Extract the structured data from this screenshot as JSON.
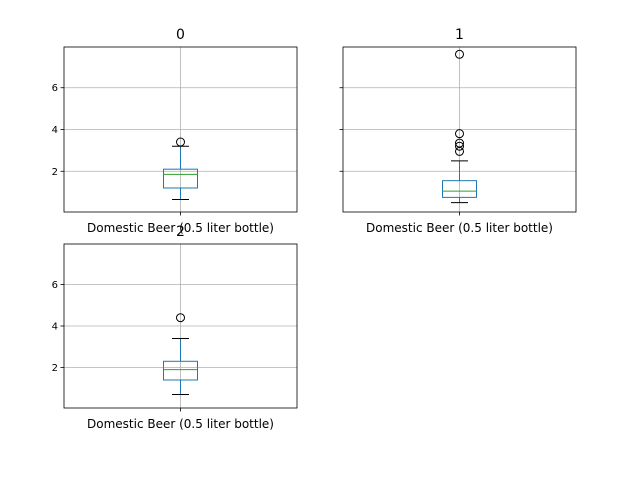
{
  "chart_data": [
    {
      "type": "boxplot",
      "title": "0",
      "category": "Domestic Beer (0.5 liter bottle)",
      "ylim": [
        0.05,
        7.95
      ],
      "yticks": [
        2,
        4,
        6
      ],
      "grid": true,
      "box": {
        "whisker_low": 0.65,
        "q1": 1.2,
        "median": 1.85,
        "q3": 2.1,
        "whisker_high": 3.2
      },
      "outliers": [
        3.4
      ]
    },
    {
      "type": "boxplot",
      "title": "1",
      "category": "Domestic Beer (0.5 liter bottle)",
      "ylim": [
        0.05,
        7.95
      ],
      "yticks": [
        2,
        4,
        6
      ],
      "grid": true,
      "box": {
        "whisker_low": 0.5,
        "q1": 0.75,
        "median": 1.05,
        "q3": 1.55,
        "whisker_high": 2.5
      },
      "outliers": [
        2.95,
        3.2,
        3.35,
        3.8,
        7.6
      ]
    },
    {
      "type": "boxplot",
      "title": "2",
      "category": "Domestic Beer (0.5 liter bottle)",
      "ylim": [
        0.05,
        7.95
      ],
      "yticks": [
        2,
        4,
        6
      ],
      "grid": true,
      "box": {
        "whisker_low": 0.7,
        "q1": 1.4,
        "median": 1.9,
        "q3": 2.3,
        "whisker_high": 3.4
      },
      "outliers": [
        4.4
      ]
    }
  ],
  "colors": {
    "box": "#1f77b4",
    "median": "#2ca02c",
    "whisker": "#000000",
    "grid": "#b0b0b0"
  }
}
